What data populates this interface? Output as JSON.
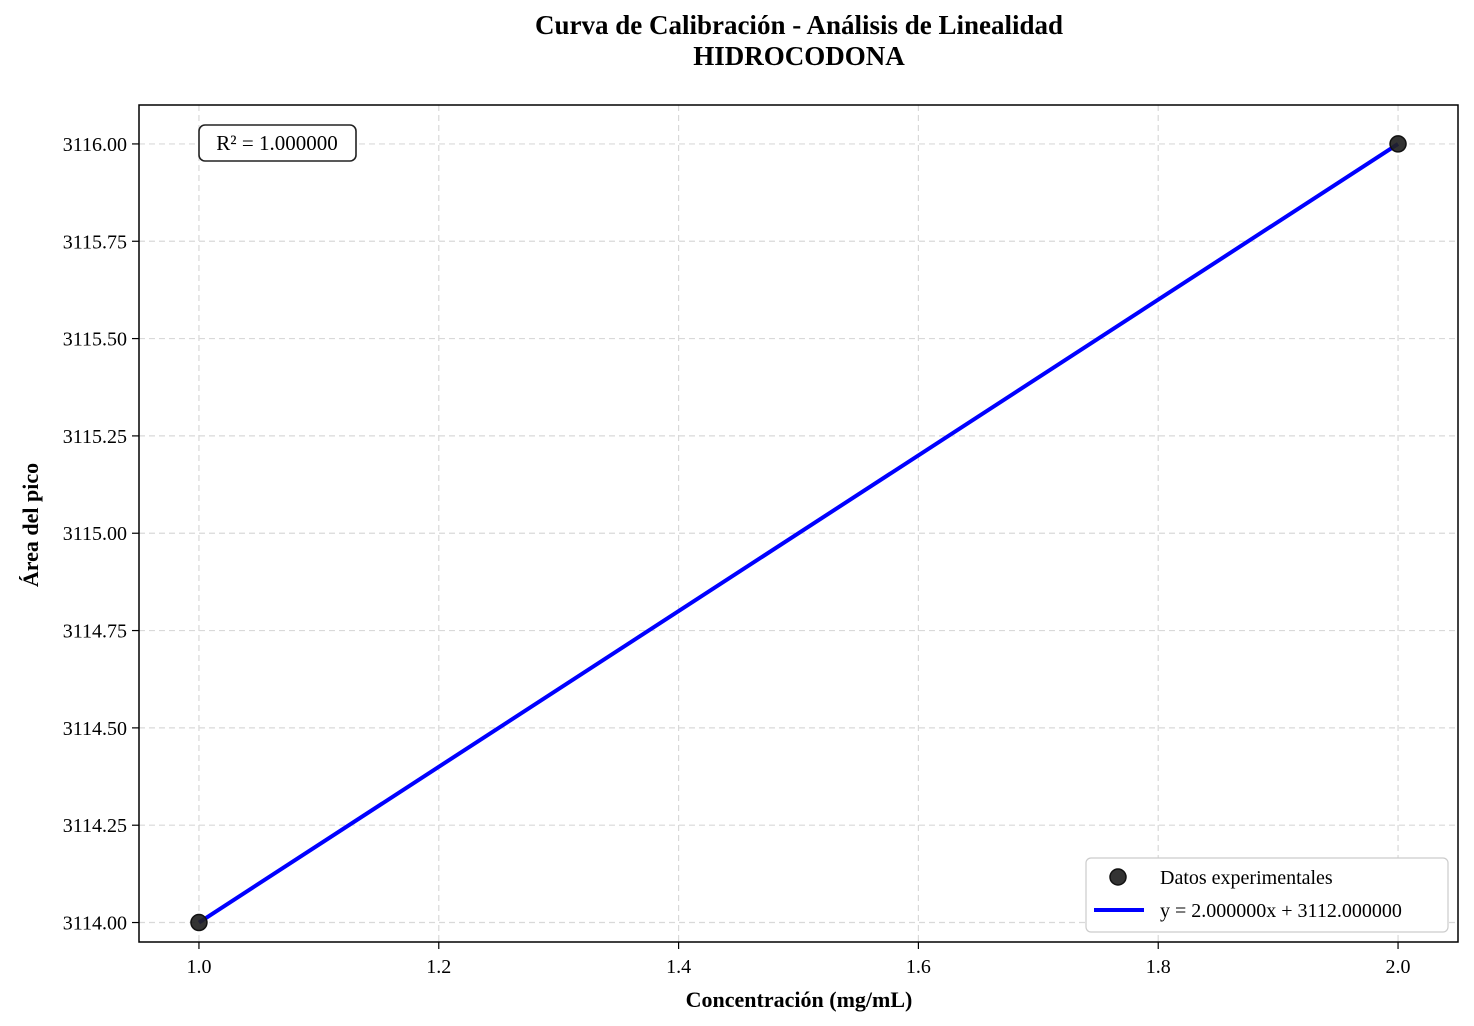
{
  "chart_data": {
    "type": "scatter",
    "title": "Curva de Calibración - Análisis de Linealidad",
    "subtitle": "HIDROCODONA",
    "xlabel": "Concentración (mg/mL)",
    "ylabel": "Área del pico",
    "xlim": [
      0.95,
      2.05
    ],
    "ylim": [
      3113.95,
      3116.1
    ],
    "x_ticks": [
      1.0,
      1.2,
      1.4,
      1.6,
      1.8,
      2.0
    ],
    "x_tick_labels": [
      "1.0",
      "1.2",
      "1.4",
      "1.6",
      "1.8",
      "2.0"
    ],
    "y_ticks": [
      3114.0,
      3114.25,
      3114.5,
      3114.75,
      3115.0,
      3115.25,
      3115.5,
      3115.75,
      3116.0
    ],
    "y_tick_labels": [
      "3114.00",
      "3114.25",
      "3114.50",
      "3114.75",
      "3115.00",
      "3115.25",
      "3115.50",
      "3115.75",
      "3116.00"
    ],
    "grid": true,
    "legend_position": "bottom-right",
    "series": [
      {
        "name": "Datos experimentales",
        "kind": "scatter",
        "color": "#222222",
        "x": [
          1.0,
          2.0
        ],
        "y": [
          3114.0,
          3116.0
        ]
      },
      {
        "name": "y = 2.000000x + 3112.000000",
        "kind": "line",
        "color": "#0000ff",
        "x": [
          1.0,
          2.0
        ],
        "y": [
          3114.0,
          3116.0
        ]
      }
    ],
    "annotation": "R² = 1.000000"
  }
}
